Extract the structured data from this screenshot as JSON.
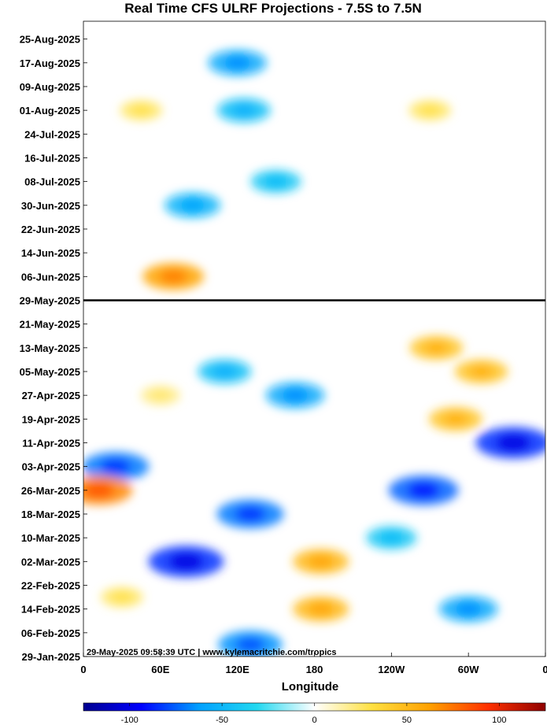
{
  "chart_data": {
    "type": "heatmap",
    "title": "Real Time CFS ULRF Projections - 7.5S to 7.5N",
    "xlabel": "Longitude",
    "ylabel": "",
    "x_ticks": [
      "0",
      "60E",
      "120E",
      "180",
      "120W",
      "60W",
      "0"
    ],
    "x_tick_values": [
      0,
      60,
      120,
      180,
      240,
      300,
      360
    ],
    "xlim": [
      0,
      360
    ],
    "y_ticks": [
      "25-Aug-2025",
      "17-Aug-2025",
      "09-Aug-2025",
      "01-Aug-2025",
      "24-Jul-2025",
      "16-Jul-2025",
      "08-Jul-2025",
      "30-Jun-2025",
      "22-Jun-2025",
      "14-Jun-2025",
      "06-Jun-2025",
      "29-May-2025",
      "21-May-2025",
      "13-May-2025",
      "05-May-2025",
      "27-Apr-2025",
      "19-Apr-2025",
      "11-Apr-2025",
      "03-Apr-2025",
      "26-Mar-2025",
      "18-Mar-2025",
      "10-Mar-2025",
      "02-Mar-2025",
      "22-Feb-2025",
      "14-Feb-2025",
      "06-Feb-2025",
      "29-Jan-2025"
    ],
    "ylim": [
      "29-Jan-2025",
      "31-Aug-2025"
    ],
    "current_date_line": "29-May-2025",
    "colorbar": {
      "ticks": [
        "-100",
        "-50",
        "0",
        "50",
        "100"
      ],
      "tick_values": [
        -100,
        -50,
        0,
        50,
        100
      ],
      "range": [
        -125,
        125
      ],
      "colormap": [
        "#00008f",
        "#0000ff",
        "#00a0ff",
        "#22d8f0",
        "#ffffff",
        "#ffe040",
        "#ffa000",
        "#ff3000",
        "#8f0000"
      ]
    },
    "credit": "29-May-2025 09:58:39 UTC | www.kylemacritchie.com/tropics",
    "features": [
      {
        "lon": 120,
        "date": "17-Aug-2025",
        "value": -55
      },
      {
        "lon": 125,
        "date": "01-Aug-2025",
        "value": -45
      },
      {
        "lon": 45,
        "date": "01-Aug-2025",
        "value": 25
      },
      {
        "lon": 270,
        "date": "01-Aug-2025",
        "value": 25
      },
      {
        "lon": 150,
        "date": "08-Jul-2025",
        "value": -40
      },
      {
        "lon": 85,
        "date": "30-Jun-2025",
        "value": -50
      },
      {
        "lon": 70,
        "date": "06-Jun-2025",
        "value": 60
      },
      {
        "lon": 110,
        "date": "05-May-2025",
        "value": -45
      },
      {
        "lon": 60,
        "date": "27-Apr-2025",
        "value": 20
      },
      {
        "lon": 275,
        "date": "13-May-2025",
        "value": 45
      },
      {
        "lon": 310,
        "date": "05-May-2025",
        "value": 45
      },
      {
        "lon": 290,
        "date": "19-Apr-2025",
        "value": 45
      },
      {
        "lon": 335,
        "date": "11-Apr-2025",
        "value": -85
      },
      {
        "lon": 165,
        "date": "27-Apr-2025",
        "value": -55
      },
      {
        "lon": 25,
        "date": "03-Apr-2025",
        "value": -70
      },
      {
        "lon": 12,
        "date": "26-Mar-2025",
        "value": 70
      },
      {
        "lon": 130,
        "date": "18-Mar-2025",
        "value": -70
      },
      {
        "lon": 265,
        "date": "26-Mar-2025",
        "value": -75
      },
      {
        "lon": 80,
        "date": "02-Mar-2025",
        "value": -85
      },
      {
        "lon": 185,
        "date": "02-Mar-2025",
        "value": 50
      },
      {
        "lon": 185,
        "date": "14-Feb-2025",
        "value": 50
      },
      {
        "lon": 30,
        "date": "18-Feb-2025",
        "value": 25
      },
      {
        "lon": 130,
        "date": "02-Feb-2025",
        "value": -65
      },
      {
        "lon": 300,
        "date": "14-Feb-2025",
        "value": -55
      },
      {
        "lon": 240,
        "date": "10-Mar-2025",
        "value": -40
      }
    ]
  }
}
